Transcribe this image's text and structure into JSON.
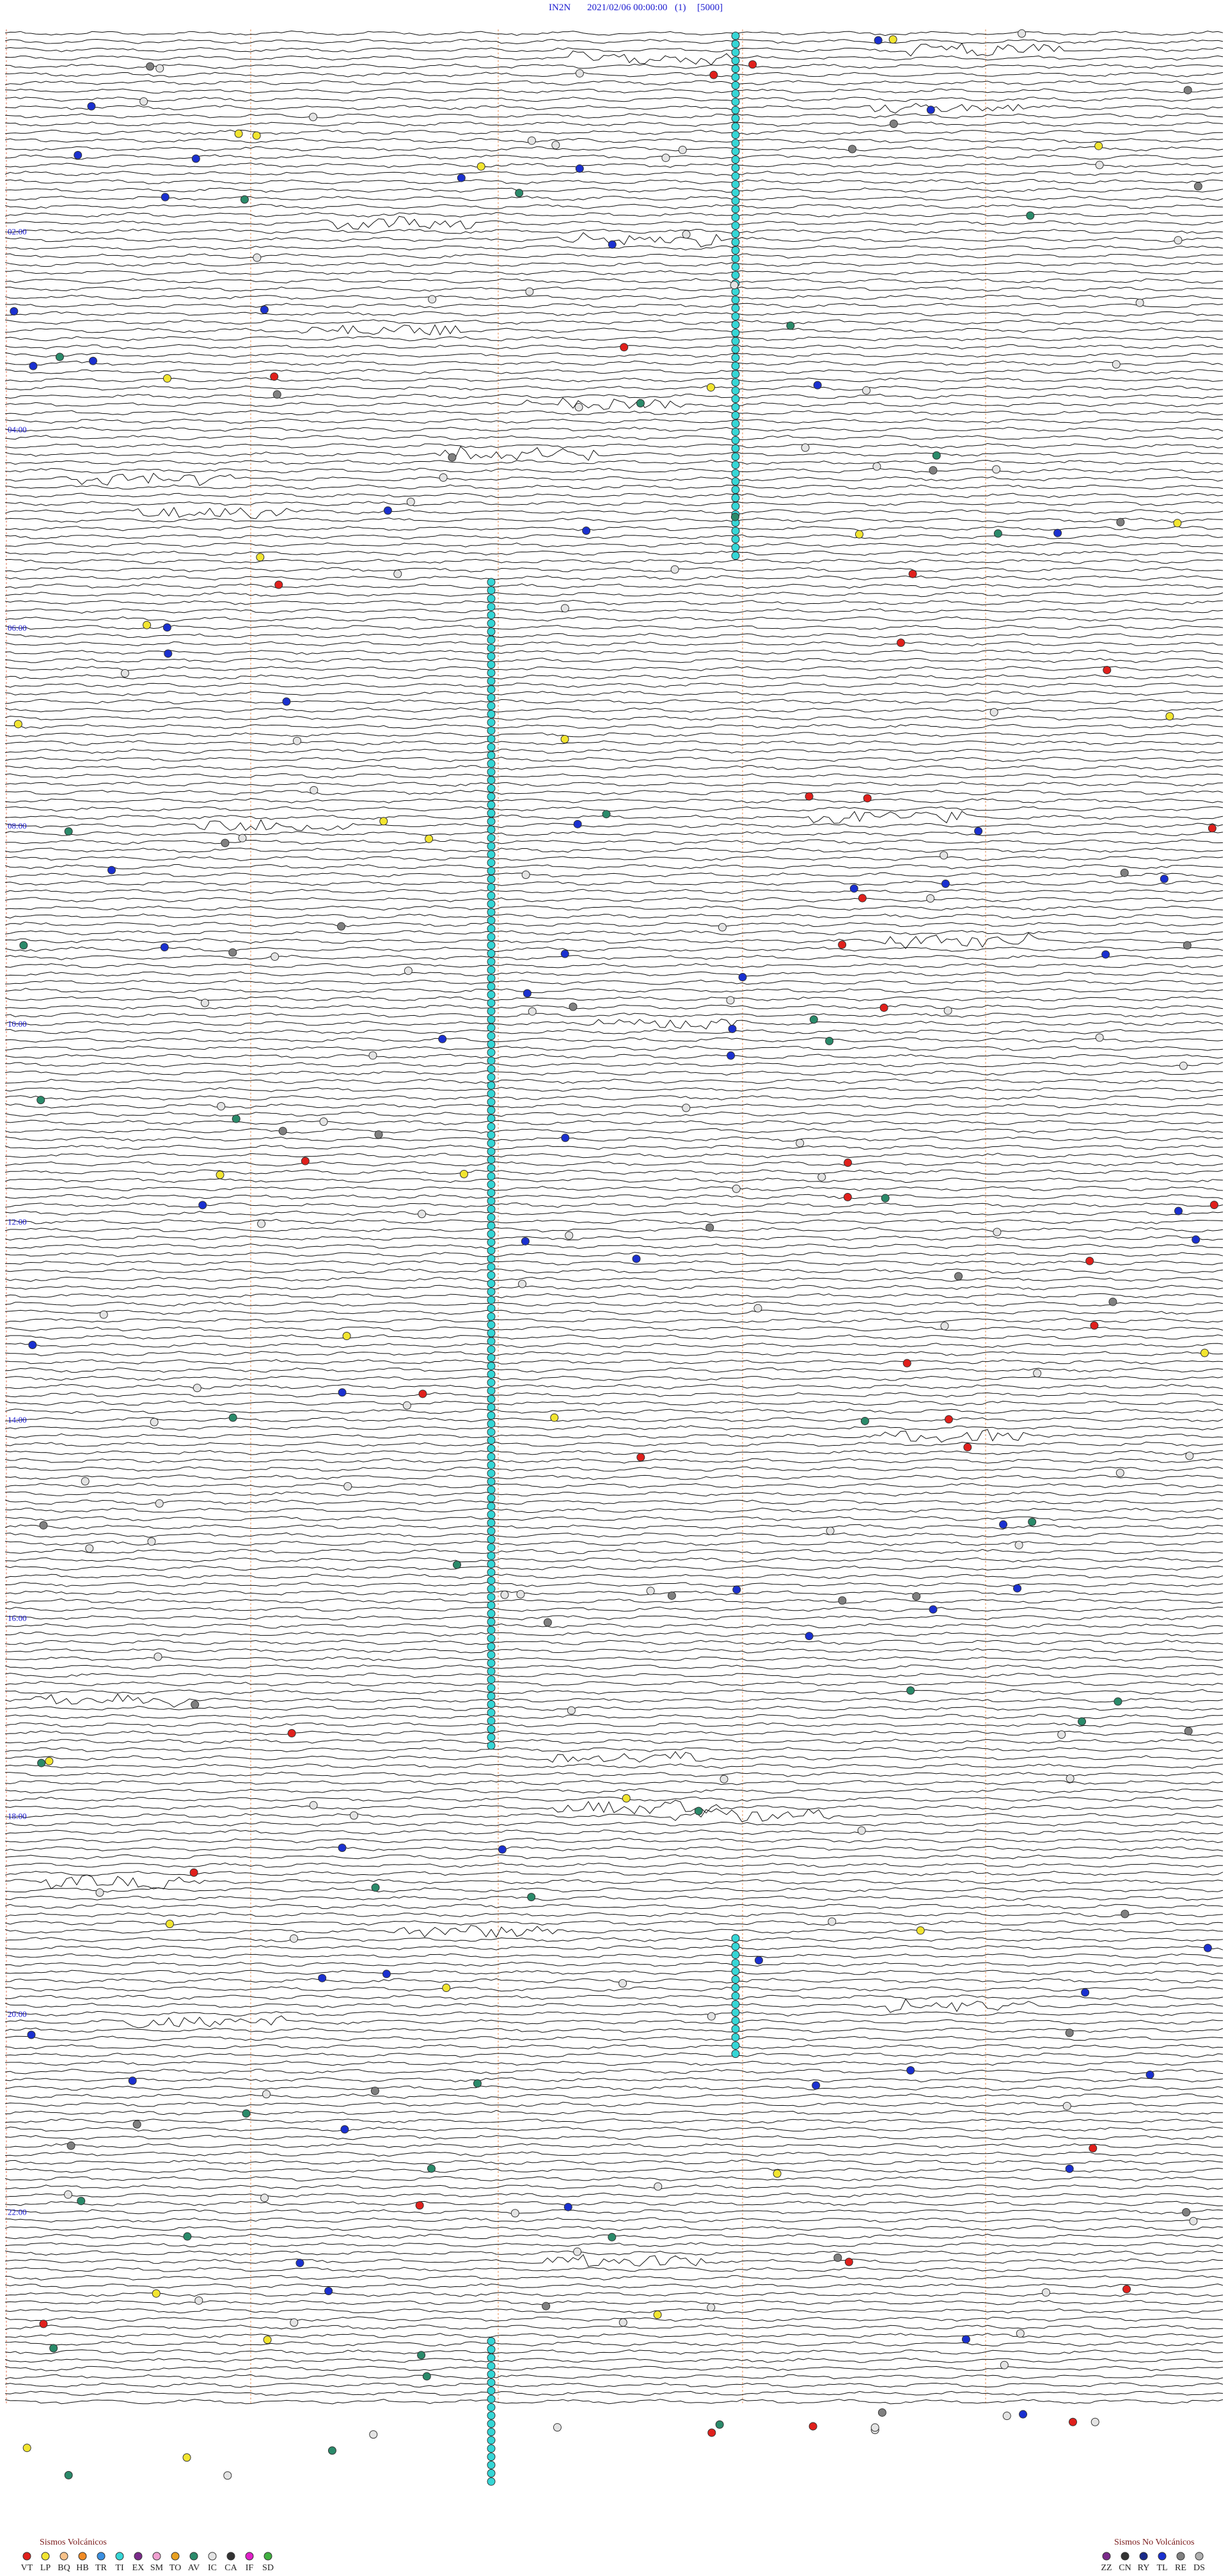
{
  "header": {
    "station": "IN2N",
    "datetime": "2021/02/06 00:00:00",
    "channel": "(1)",
    "scale": "[5000]"
  },
  "time_labels": [
    "02:00",
    "04:00",
    "06:00",
    "08:00",
    "10:00",
    "12:00",
    "14:00",
    "16:00",
    "18:00",
    "20:00",
    "22:00"
  ],
  "legend": {
    "volcanic": {
      "title": "Sismos Volcánicos",
      "items": [
        {
          "code": "VT",
          "color": "#e0201c"
        },
        {
          "code": "LP",
          "color": "#f2e530"
        },
        {
          "code": "BQ",
          "color": "#f7c28a"
        },
        {
          "code": "HB",
          "color": "#f08a24"
        },
        {
          "code": "TR",
          "color": "#3a8fe0"
        },
        {
          "code": "TI",
          "color": "#35d6d6"
        },
        {
          "code": "EX",
          "color": "#7a2a8a"
        },
        {
          "code": "SM",
          "color": "#f0a0d0"
        },
        {
          "code": "TO",
          "color": "#e8a020"
        },
        {
          "code": "AV",
          "color": "#2a8a6a"
        },
        {
          "code": "IC",
          "color": "#e4e4e4"
        },
        {
          "code": "CA",
          "color": "#333333"
        },
        {
          "code": "IF",
          "color": "#e020c8"
        },
        {
          "code": "SD",
          "color": "#40b040"
        }
      ]
    },
    "nonvolcanic": {
      "title": "Sismos No Volcánicos",
      "items": [
        {
          "code": "ZZ",
          "color": "#7a2a8a"
        },
        {
          "code": "CN",
          "color": "#333333"
        },
        {
          "code": "RY",
          "color": "#1a2a8a"
        },
        {
          "code": "TL",
          "color": "#1a30d0"
        },
        {
          "code": "RE",
          "color": "#808080"
        },
        {
          "code": "DS",
          "color": "#b0b0b0"
        }
      ]
    }
  }
}
